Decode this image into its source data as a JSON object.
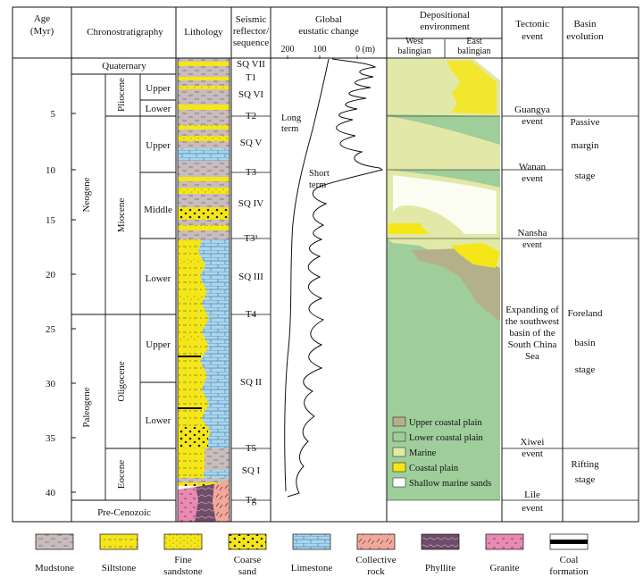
{
  "headers": {
    "age": [
      "Age",
      "(Myr)"
    ],
    "chrono": "Chronostratigraphy",
    "lithology": "Lithology",
    "seismic": [
      "Seismic",
      "reflector/",
      "sequence"
    ],
    "eustatic": [
      "Global",
      "eustatic change"
    ],
    "eustatic_ticks": [
      "200",
      "100",
      "0 (m)"
    ],
    "depositional": [
      "Depositional",
      "environment"
    ],
    "west": [
      "West",
      "balingian"
    ],
    "east": [
      "East",
      "balingian"
    ],
    "tectonic": [
      "Tectonic",
      "event"
    ],
    "basin": [
      "Basin",
      "evolution"
    ]
  },
  "age_ticks": [
    "5",
    "10",
    "15",
    "20",
    "25",
    "30",
    "35",
    "40"
  ],
  "eras": [
    "Neogene",
    "Paleogene"
  ],
  "quaternary": "Quaternary",
  "pre_cenozoic": "Pre-Cenozoic",
  "epochs": [
    "Pliocene",
    "Miocene",
    "Oligocene",
    "Eocene"
  ],
  "subdivisions": [
    "Upper",
    "Lower",
    "Upper",
    "Middle",
    "Lower",
    "Upper",
    "Lower"
  ],
  "seismic_labels": [
    "SQ VII",
    "T1",
    "SQ VI",
    "T2",
    "SQ V",
    "T3",
    "SQ IV",
    "T3¹",
    "SQ III",
    "T4",
    "SQ II",
    "T5",
    "SQ I",
    "Tg"
  ],
  "curve_labels": {
    "long": [
      "Long",
      "term"
    ],
    "short": [
      "Short",
      "term"
    ]
  },
  "tectonic_events": [
    [
      "Guangya",
      "event"
    ],
    [
      "Wanan",
      "event"
    ],
    [
      "Nansha",
      "event"
    ],
    [
      "Expanding of",
      "the southwest",
      "basin of the",
      "South China",
      "Sea"
    ],
    [
      "Xiwei",
      "event"
    ],
    [
      "Lile",
      "event"
    ]
  ],
  "basin_stages": [
    [
      "Passive",
      "margin",
      "stage"
    ],
    [
      "Foreland",
      "basin",
      "stage"
    ],
    [
      "Rifting",
      "stage"
    ]
  ],
  "env_legend": [
    "Upper coastal plain",
    "Lower coastal plain",
    "Marine",
    "Coastal plain",
    "Shallow marine sands"
  ],
  "litho_legend": [
    [
      "Mudstone"
    ],
    [
      "Siltstone"
    ],
    [
      "Fine",
      "sandstone"
    ],
    [
      "Coarse",
      "sand"
    ],
    [
      "Limestone"
    ],
    [
      "Collective",
      "rock"
    ],
    [
      "Phyllite"
    ],
    [
      "Granite"
    ],
    [
      "Coal",
      "formation"
    ]
  ],
  "colors": {
    "mudstone": "#c9bcbc",
    "yellow": "#f5e617",
    "limestone": "#a9d6ee",
    "collective": "#f0a99a",
    "phyllite": "#6f4c68",
    "granite": "#e98ab2",
    "marine": "#e2e8a7",
    "lower_coastal": "#9fce9b",
    "upper_coastal": "#b4b08a"
  }
}
